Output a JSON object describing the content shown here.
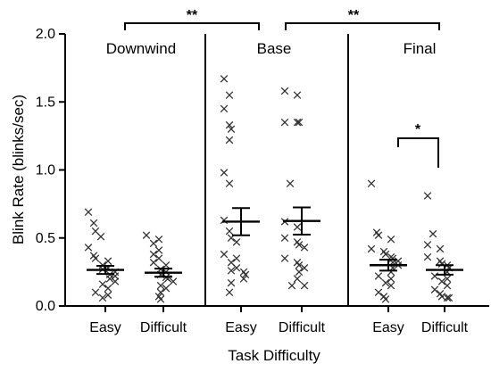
{
  "chart_data": {
    "type": "scatter",
    "ylabel": "Blink Rate (blinks/sec)",
    "xlabel": "Task Difficulty",
    "ylim": [
      0.0,
      2.0
    ],
    "yticks": [
      "0.0",
      "0.5",
      "1.0",
      "1.5",
      "2.0"
    ],
    "panels": [
      "Downwind",
      "Base",
      "Final"
    ],
    "categories": [
      "Easy",
      "Difficult",
      "Easy",
      "Difficult",
      "Easy",
      "Difficult"
    ],
    "groups": [
      {
        "panel": "Downwind",
        "category": "Easy",
        "mean": 0.265,
        "error": 0.03,
        "points": [
          0.69,
          0.61,
          0.55,
          0.51,
          0.43,
          0.37,
          0.35,
          0.33,
          0.3,
          0.28,
          0.27,
          0.25,
          0.23,
          0.22,
          0.2,
          0.18,
          0.16,
          0.13,
          0.1,
          0.08,
          0.06
        ]
      },
      {
        "panel": "Downwind",
        "category": "Difficult",
        "mean": 0.245,
        "error": 0.03,
        "points": [
          0.52,
          0.49,
          0.46,
          0.41,
          0.38,
          0.35,
          0.32,
          0.3,
          0.27,
          0.25,
          0.23,
          0.21,
          0.2,
          0.18,
          0.15,
          0.13,
          0.1,
          0.07,
          0.05
        ]
      },
      {
        "panel": "Base",
        "category": "Easy",
        "mean": 0.62,
        "error": 0.1,
        "points": [
          1.67,
          1.55,
          1.45,
          1.33,
          1.3,
          1.22,
          0.98,
          0.9,
          0.63,
          0.55,
          0.5,
          0.47,
          0.38,
          0.35,
          0.32,
          0.28,
          0.26,
          0.25,
          0.23,
          0.2,
          0.17,
          0.1
        ]
      },
      {
        "panel": "Base",
        "category": "Difficult",
        "mean": 0.625,
        "error": 0.1,
        "points": [
          1.58,
          1.55,
          1.35,
          1.35,
          1.35,
          0.9,
          0.62,
          0.58,
          0.5,
          0.47,
          0.45,
          0.43,
          0.35,
          0.32,
          0.3,
          0.28,
          0.25,
          0.2,
          0.15,
          0.15
        ]
      },
      {
        "panel": "Final",
        "category": "Easy",
        "mean": 0.3,
        "error": 0.04,
        "points": [
          0.9,
          0.54,
          0.52,
          0.49,
          0.42,
          0.4,
          0.38,
          0.36,
          0.35,
          0.33,
          0.32,
          0.3,
          0.28,
          0.25,
          0.22,
          0.2,
          0.17,
          0.15,
          0.1,
          0.07,
          0.05
        ]
      },
      {
        "panel": "Final",
        "category": "Difficult",
        "mean": 0.265,
        "error": 0.035,
        "points": [
          0.81,
          0.53,
          0.45,
          0.42,
          0.36,
          0.33,
          0.31,
          0.3,
          0.28,
          0.25,
          0.22,
          0.2,
          0.18,
          0.15,
          0.12,
          0.09,
          0.07,
          0.06,
          0.06
        ]
      }
    ],
    "annotations": [
      {
        "text": "**",
        "between": [
          "Downwind",
          "Base"
        ]
      },
      {
        "text": "**",
        "between": [
          "Base",
          "Final"
        ]
      },
      {
        "text": "*",
        "between": [
          "Final Easy",
          "Final Difficult"
        ]
      }
    ],
    "grid": false
  }
}
